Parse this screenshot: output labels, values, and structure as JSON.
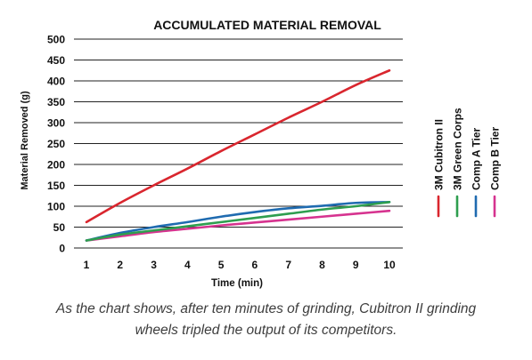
{
  "chart_data": {
    "type": "line",
    "title": "ACCUMULATED MATERIAL REMOVAL",
    "xlabel": "Time (min)",
    "ylabel": "Material Removed (g)",
    "x": [
      1,
      2,
      3,
      4,
      5,
      6,
      7,
      8,
      9,
      10
    ],
    "xlim": [
      1,
      10
    ],
    "ylim": [
      0,
      500
    ],
    "yticks": [
      0,
      50,
      100,
      150,
      200,
      250,
      300,
      350,
      400,
      450,
      500
    ],
    "grid": "horizontal",
    "legend_position": "right",
    "series": [
      {
        "name": "3M Cubitron II",
        "color": "#d9262e",
        "values": [
          62,
          108,
          150,
          190,
          232,
          272,
          312,
          350,
          390,
          425
        ]
      },
      {
        "name": "3M Green Corps",
        "color": "#2e9e4f",
        "values": [
          18,
          32,
          42,
          52,
          62,
          72,
          82,
          92,
          100,
          110
        ]
      },
      {
        "name": "Comp A Tier",
        "color": "#1f6bb0",
        "values": [
          18,
          36,
          50,
          62,
          75,
          86,
          95,
          101,
          108,
          110
        ]
      },
      {
        "name": "Comp B Tier",
        "color": "#d6338f",
        "values": [
          18,
          28,
          38,
          46,
          54,
          61,
          68,
          75,
          82,
          89
        ]
      }
    ]
  },
  "caption": {
    "line1": "As the chart shows, after ten minutes of grinding, Cubitron II grinding",
    "line2": "wheels tripled the output of its competitors."
  }
}
